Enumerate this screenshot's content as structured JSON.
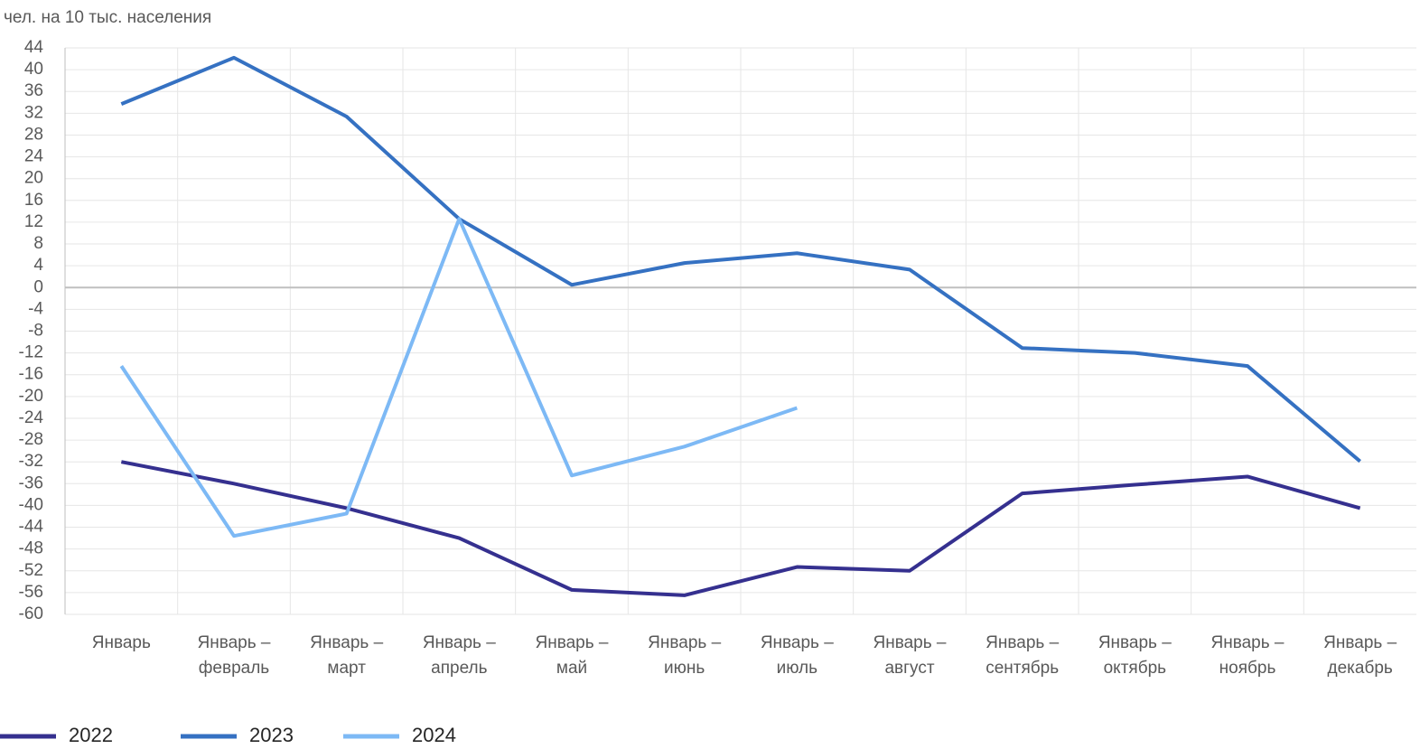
{
  "chart_data": {
    "type": "line",
    "y_axis_label": "чел. на 10 тыс. населения",
    "categories": [
      "Январь",
      "Январь – февраль",
      "Январь – март",
      "Январь – апрель",
      "Январь – май",
      "Январь – июнь",
      "Январь – июль",
      "Январь – август",
      "Январь – сентябрь",
      "Январь – октябрь",
      "Январь – ноябрь",
      "Январь – декабрь"
    ],
    "series": [
      {
        "name": "2022",
        "color": "#35308f",
        "values": [
          -32,
          -36,
          -40.5,
          -46,
          -55.5,
          -56.5,
          -51.3,
          -52,
          -37.8,
          -36.2,
          -34.7,
          -40.5
        ]
      },
      {
        "name": "2023",
        "color": "#3571c2",
        "values": [
          33.7,
          42.2,
          31.4,
          12.6,
          0.5,
          4.5,
          6.3,
          3.3,
          -11.1,
          -12,
          -14.4,
          -31.9
        ]
      },
      {
        "name": "2024",
        "color": "#7db9f5",
        "values": [
          -14.4,
          -45.6,
          -41.5,
          12.6,
          -34.5,
          -29.2,
          -22.1,
          null,
          null,
          null,
          null,
          null
        ]
      }
    ],
    "ylim": [
      -60,
      44
    ],
    "yticks": [
      44,
      40,
      36,
      32,
      28,
      24,
      20,
      16,
      12,
      8,
      4,
      0,
      -4,
      -8,
      -12,
      -16,
      -20,
      -24,
      -28,
      -32,
      -36,
      -40,
      -44,
      -48,
      -52,
      -56,
      -60
    ],
    "grid": true
  }
}
